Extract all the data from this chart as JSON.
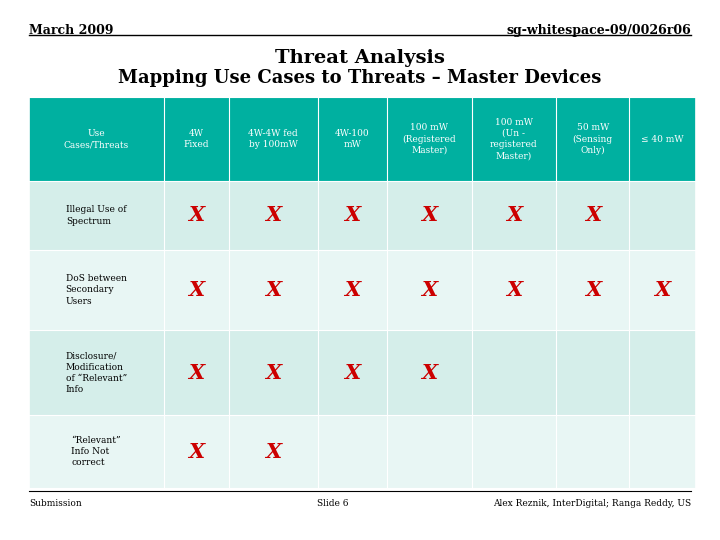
{
  "top_left": "March 2009",
  "top_right": "sg-whitespace-09/0026r06",
  "title_line1": "Threat Analysis",
  "title_line2": "Mapping Use Cases to Threats – Master Devices",
  "header_bg": "#00B0A0",
  "header_text_color": "#FFFFFF",
  "row_bg_odd": "#D5EEEA",
  "row_bg_even": "#E8F6F4",
  "x_color": "#CC0000",
  "col_headers": [
    "Use\nCases/Threats",
    "4W\nFixed",
    "4W-4W fed\nby 100mW",
    "4W-100\nmW",
    "100 mW\n(Registered\nMaster)",
    "100 mW\n(Un -\nregistered\nMaster)",
    "50 mW\n(Sensing\nOnly)",
    "≤ 40 mW"
  ],
  "rows": [
    {
      "label": "Illegal Use of\nSpectrum",
      "marks": [
        true,
        true,
        true,
        true,
        true,
        true,
        false
      ]
    },
    {
      "label": "DoS between\nSecondary\nUsers",
      "marks": [
        true,
        true,
        true,
        true,
        true,
        true,
        true
      ]
    },
    {
      "label": "Disclosure/\nModification\nof “Relevant”\nInfo",
      "marks": [
        true,
        true,
        true,
        true,
        false,
        false,
        false
      ]
    },
    {
      "label": "“Relevant”\nInfo Not\ncorrect",
      "marks": [
        true,
        true,
        false,
        false,
        false,
        false,
        false
      ]
    }
  ],
  "footer_left": "Submission",
  "footer_center": "Slide 6",
  "footer_right": "Alex Reznik, InterDigital; Ranga Reddy, US",
  "bg_color": "#FFFFFF"
}
